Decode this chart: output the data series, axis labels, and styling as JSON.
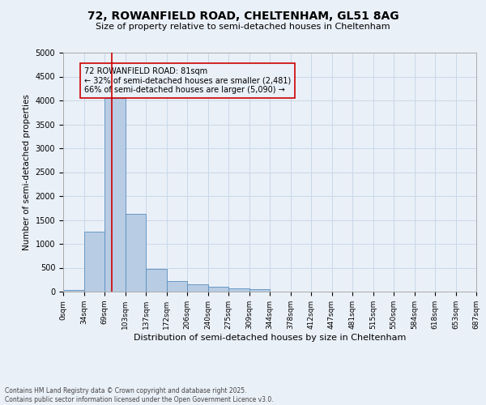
{
  "title_line1": "72, ROWANFIELD ROAD, CHELTENHAM, GL51 8AG",
  "title_line2": "Size of property relative to semi-detached houses in Cheltenham",
  "xlabel": "Distribution of semi-detached houses by size in Cheltenham",
  "ylabel": "Number of semi-detached properties",
  "footer_line1": "Contains HM Land Registry data © Crown copyright and database right 2025.",
  "footer_line2": "Contains public sector information licensed under the Open Government Licence v3.0.",
  "annotation_title": "72 ROWANFIELD ROAD: 81sqm",
  "annotation_line1": "← 32% of semi-detached houses are smaller (2,481)",
  "annotation_line2": "66% of semi-detached houses are larger (5,090) →",
  "property_size": 81,
  "property_bin_index": 2,
  "bin_edges": [
    0,
    34,
    69,
    103,
    137,
    172,
    206,
    240,
    275,
    309,
    344,
    378,
    412,
    447,
    481,
    515,
    550,
    584,
    618,
    653,
    687
  ],
  "bin_labels": [
    "0sqm",
    "34sqm",
    "69sqm",
    "103sqm",
    "137sqm",
    "172sqm",
    "206sqm",
    "240sqm",
    "275sqm",
    "309sqm",
    "344sqm",
    "378sqm",
    "412sqm",
    "447sqm",
    "481sqm",
    "515sqm",
    "550sqm",
    "584sqm",
    "618sqm",
    "653sqm",
    "687sqm"
  ],
  "bar_heights": [
    30,
    1250,
    4050,
    1620,
    480,
    215,
    160,
    100,
    75,
    50,
    0,
    0,
    0,
    0,
    0,
    0,
    0,
    0,
    0,
    0
  ],
  "bar_color": "#b8cce4",
  "bar_edge_color": "#5a8fbd",
  "grid_color": "#c8d8e8",
  "background_color": "#eaf0f8",
  "red_line_color": "#cc0000",
  "annotation_box_color": "#cc0000",
  "ylim": [
    0,
    5000
  ],
  "yticks": [
    0,
    500,
    1000,
    1500,
    2000,
    2500,
    3000,
    3500,
    4000,
    4500,
    5000
  ]
}
